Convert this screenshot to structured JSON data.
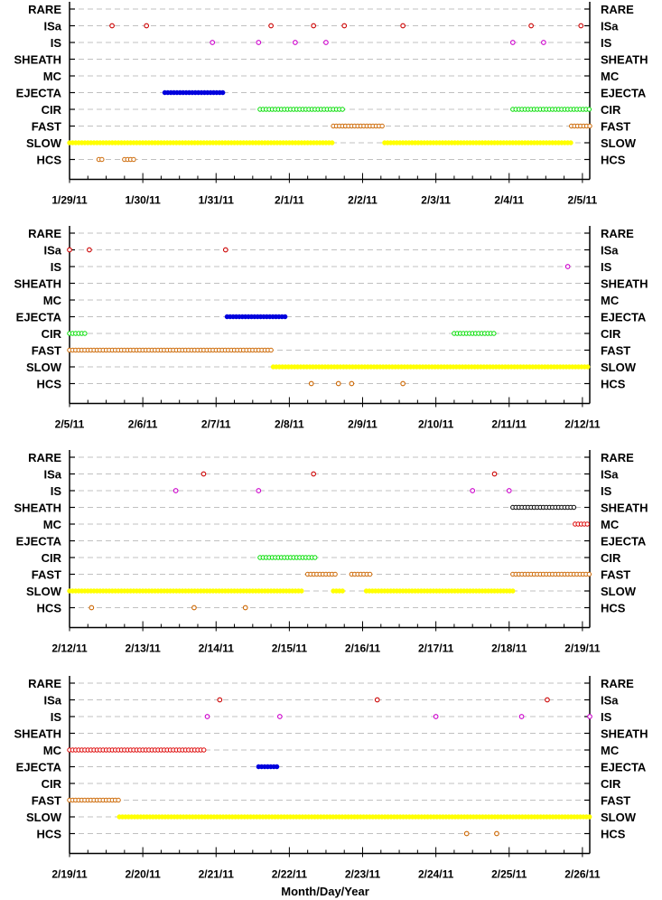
{
  "chart_data": {
    "type": "scatter",
    "xlabel": "Month/Day/Year",
    "categories": [
      "RARE",
      "ISa",
      "IS",
      "SHEATH",
      "MC",
      "EJECTA",
      "CIR",
      "FAST",
      "SLOW",
      "HCS"
    ],
    "colors": {
      "ISa": "#cc0000",
      "IS": "#cc00cc",
      "SHEATH": "#000000",
      "MC": "#dd0000",
      "EJECTA": "#0000dd",
      "CIR": "#00dd00",
      "FAST": "#cc6600",
      "SLOW": "#ffff00",
      "HCS": "#cc6600"
    },
    "panels": [
      {
        "xlim": [
          0,
          7.1
        ],
        "xticks": [
          "1/29/11",
          "1/30/11",
          "1/31/11",
          "2/1/11",
          "2/2/11",
          "2/3/11",
          "2/4/11",
          "2/5/11"
        ],
        "points": {
          "ISa": [
            0.58,
            1.05,
            2.75,
            3.33,
            3.75,
            4.55,
            6.3,
            6.98
          ],
          "IS": [
            1.95,
            2.58,
            3.08,
            3.5,
            6.05,
            6.47
          ]
        },
        "ranges": {
          "EJECTA": [
            [
              1.3,
              2.1
            ]
          ],
          "CIR": [
            [
              2.6,
              3.75
            ],
            [
              6.05,
              7.1
            ]
          ],
          "FAST": [
            [
              3.6,
              4.3
            ],
            [
              6.85,
              7.1
            ]
          ],
          "SLOW": [
            [
              0.0,
              3.6
            ],
            [
              4.3,
              6.85
            ]
          ],
          "HCS": [
            [
              0.4,
              0.48
            ],
            [
              0.75,
              0.88
            ]
          ]
        }
      },
      {
        "xlim": [
          0,
          7.1
        ],
        "xticks": [
          "2/5/11",
          "2/6/11",
          "2/7/11",
          "2/8/11",
          "2/9/11",
          "2/10/11",
          "2/11/11",
          "2/12/11"
        ],
        "points": {
          "ISa": [
            0.0,
            0.27,
            2.13
          ],
          "IS": [
            6.8
          ],
          "HCS": [
            3.3,
            3.67,
            3.85,
            4.55
          ]
        },
        "ranges": {
          "EJECTA": [
            [
              2.15,
              2.95
            ]
          ],
          "CIR": [
            [
              0.0,
              0.22
            ],
            [
              5.25,
              5.8
            ]
          ],
          "FAST": [
            [
              0.0,
              2.78
            ]
          ],
          "SLOW": [
            [
              2.78,
              7.1
            ]
          ]
        }
      },
      {
        "xlim": [
          0,
          7.1
        ],
        "xticks": [
          "2/12/11",
          "2/13/11",
          "2/14/11",
          "2/15/11",
          "2/16/11",
          "2/17/11",
          "2/18/11",
          "2/19/11"
        ],
        "points": {
          "ISa": [
            1.83,
            3.33,
            5.8
          ],
          "IS": [
            1.45,
            2.58,
            5.5,
            6.0
          ],
          "HCS": [
            0.3,
            1.7,
            2.4
          ]
        },
        "ranges": {
          "SHEATH": [
            [
              6.05,
              6.9
            ]
          ],
          "MC": [
            [
              6.9,
              7.1
            ]
          ],
          "CIR": [
            [
              2.6,
              3.35
            ]
          ],
          "FAST": [
            [
              3.25,
              3.65
            ],
            [
              3.85,
              4.1
            ],
            [
              6.05,
              7.1
            ]
          ],
          "SLOW": [
            [
              0.0,
              3.2
            ],
            [
              3.6,
              3.75
            ],
            [
              4.05,
              6.05
            ]
          ]
        }
      },
      {
        "xlim": [
          0,
          7.1
        ],
        "xticks": [
          "2/19/11",
          "2/20/11",
          "2/21/11",
          "2/22/11",
          "2/23/11",
          "2/24/11",
          "2/25/11",
          "2/26/11"
        ],
        "points": {
          "ISa": [
            2.05,
            4.2,
            6.52
          ],
          "IS": [
            1.88,
            2.87,
            5.0,
            6.17,
            7.1
          ],
          "HCS": [
            5.42,
            5.83
          ]
        },
        "ranges": {
          "MC": [
            [
              0.0,
              1.85
            ]
          ],
          "EJECTA": [
            [
              2.58,
              2.87
            ]
          ],
          "FAST": [
            [
              0.0,
              0.68
            ]
          ],
          "SLOW": [
            [
              0.68,
              7.1
            ]
          ]
        }
      }
    ]
  }
}
